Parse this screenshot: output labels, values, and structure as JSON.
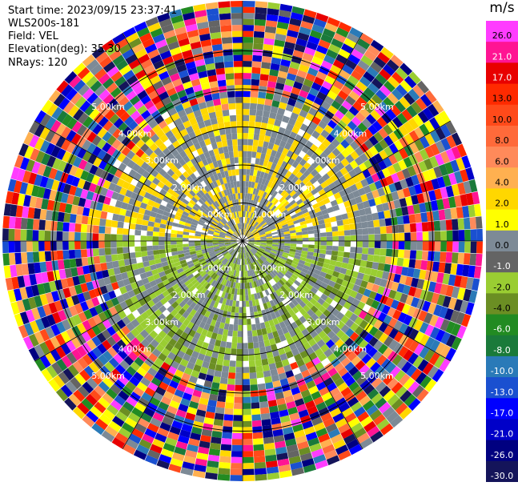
{
  "header": {
    "start_time": "Start time: 2023/09/15 23:37:41",
    "instrument": "WLS200s-181",
    "field": "Field: VEL",
    "elevation": "Elevation(deg): 35.30",
    "nrays": "NRays: 120"
  },
  "chart_data": {
    "type": "heatmap",
    "projection": "polar-ppi",
    "field": "VEL",
    "units": "m/s",
    "n_rays": 120,
    "elevation_deg": 35.3,
    "max_range_km": 6.0,
    "range_rings_km": [
      1,
      2,
      3,
      4,
      5
    ],
    "range_ring_labels": [
      "1.00km",
      "2.00km",
      "3.00km",
      "4.00km",
      "5.00km"
    ],
    "colorbar": {
      "unit_label": "m/s",
      "tick_labels": [
        "26.0",
        "21.0",
        "17.0",
        "13.0",
        "10.0",
        "8.0",
        "6.0",
        "4.0",
        "2.0",
        "1.0",
        "0.0",
        "-1.0",
        "-2.0",
        "-4.0",
        "-6.0",
        "-8.0",
        "-10.0",
        "-13.0",
        "-17.0",
        "-21.0",
        "-26.0",
        "-30.0"
      ],
      "colors": [
        "#ff3cff",
        "#ff1493",
        "#e80000",
        "#ff2a00",
        "#ff4a1a",
        "#ff6a3a",
        "#ff8a5a",
        "#ffb050",
        "#ffd700",
        "#ffff00",
        "#7d8a96",
        "#646464",
        "#9acd32",
        "#6b8e23",
        "#228b22",
        "#1a7a3a",
        "#2a7ab8",
        "#1a50d0",
        "#0000ff",
        "#0000c8",
        "#000080",
        "#14145a"
      ]
    }
  }
}
